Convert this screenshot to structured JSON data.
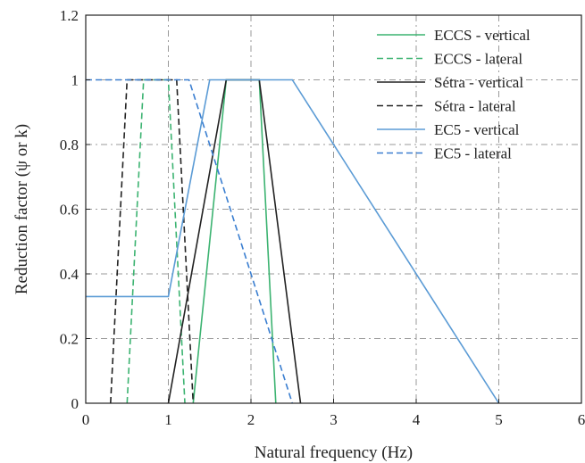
{
  "chart_data": {
    "type": "line",
    "title": "",
    "xlabel": "Natural frequency (Hz)",
    "ylabel": "Reduction factor (ψ or k)",
    "xlim": [
      0,
      6
    ],
    "ylim": [
      0,
      1.2
    ],
    "xticks": [
      0,
      1,
      2,
      3,
      4,
      5,
      6
    ],
    "xtick_labels": [
      "0",
      "1",
      "2",
      "3",
      "4",
      "5",
      "6"
    ],
    "yticks": [
      0,
      0.2,
      0.4,
      0.6,
      0.8,
      1,
      1.2
    ],
    "ytick_labels": [
      "0",
      "0.2",
      "0.4",
      "0.6",
      "0.8",
      "1",
      "1.2"
    ],
    "grid": true,
    "legend_position": "top-right",
    "series": [
      {
        "name": "ECCS - vertical",
        "color": "#3cb371",
        "dash": "solid",
        "x": [
          1.3,
          1.7,
          2.1,
          2.3
        ],
        "y": [
          0,
          1,
          1,
          0
        ]
      },
      {
        "name": "ECCS - lateral",
        "color": "#3cb371",
        "dash": "dashed",
        "x": [
          0.5,
          0.7,
          1.0,
          1.2
        ],
        "y": [
          0,
          1,
          1,
          0
        ]
      },
      {
        "name": "Sétra - vertical",
        "color": "#222222",
        "dash": "solid",
        "x": [
          1.0,
          1.7,
          2.1,
          2.6
        ],
        "y": [
          0,
          1,
          1,
          0
        ]
      },
      {
        "name": "Sétra - lateral",
        "color": "#222222",
        "dash": "dashed",
        "x": [
          0.3,
          0.5,
          1.1,
          1.3
        ],
        "y": [
          0,
          1,
          1,
          0
        ]
      },
      {
        "name": "EC5 - vertical",
        "color": "#5b9bd5",
        "dash": "solid",
        "x": [
          0,
          1.0,
          1.5,
          2.5,
          5.0
        ],
        "y": [
          0.33,
          0.33,
          1,
          1,
          0
        ]
      },
      {
        "name": "EC5 - lateral",
        "color": "#3a7ed0",
        "dash": "dashed",
        "x": [
          0,
          1.25,
          2.5
        ],
        "y": [
          1,
          1,
          0
        ]
      }
    ]
  }
}
